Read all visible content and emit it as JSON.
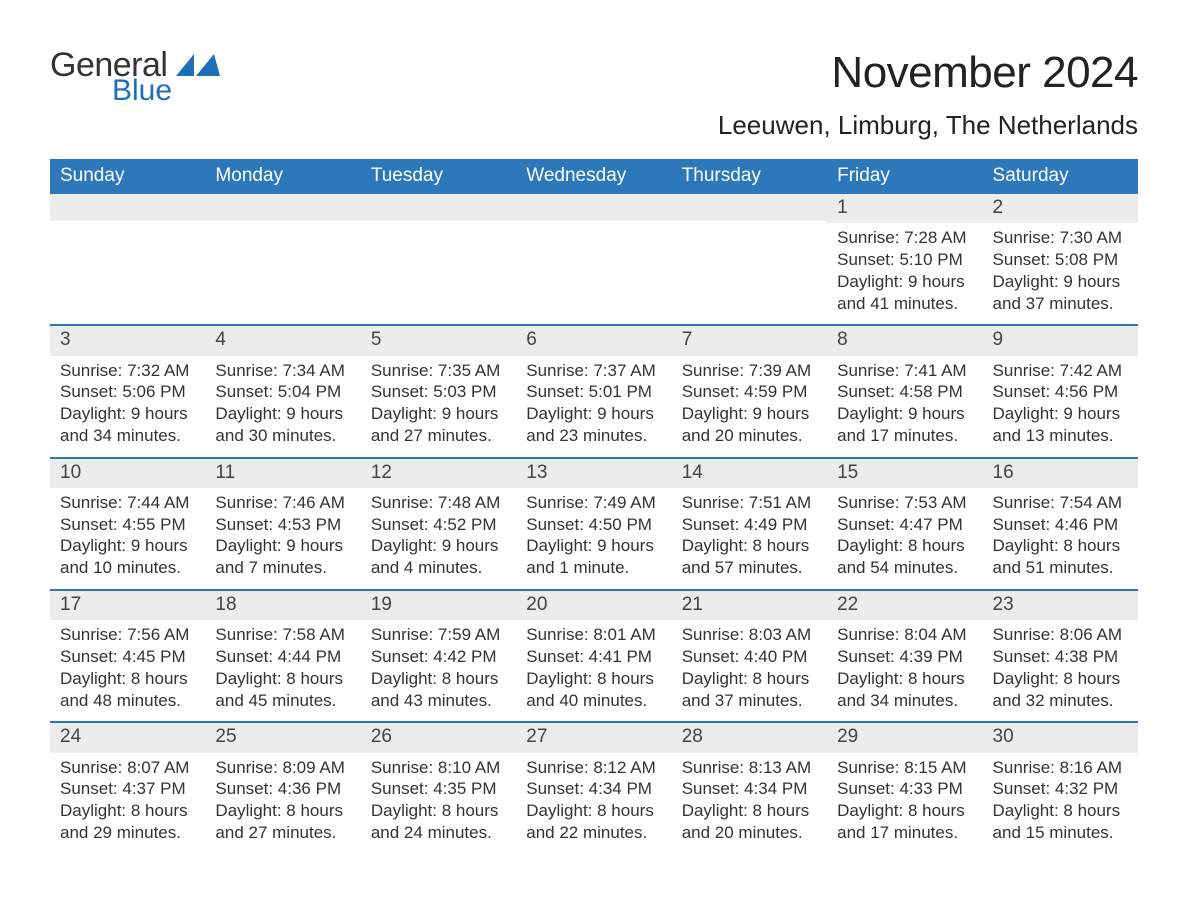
{
  "brand": {
    "name_general": "General",
    "name_blue": "Blue",
    "swoosh_color": "#1c6fb8",
    "text_color_dark": "#333333",
    "text_color_blue": "#1c6fb8"
  },
  "header": {
    "month_title": "November 2024",
    "location": "Leeuwen, Limburg, The Netherlands",
    "month_title_fontsize": 44,
    "location_fontsize": 26
  },
  "calendar": {
    "type": "table",
    "header_bg": "#2d77bb",
    "header_fg": "#ffffff",
    "week_divider_color": "#2d77bb",
    "daynum_bg": "#ececec",
    "cell_fontsize": 17,
    "columns": [
      "Sunday",
      "Monday",
      "Tuesday",
      "Wednesday",
      "Thursday",
      "Friday",
      "Saturday"
    ],
    "weeks": [
      [
        null,
        null,
        null,
        null,
        null,
        {
          "n": "1",
          "sunrise": "7:28 AM",
          "sunset": "5:10 PM",
          "daylight": "9 hours and 41 minutes."
        },
        {
          "n": "2",
          "sunrise": "7:30 AM",
          "sunset": "5:08 PM",
          "daylight": "9 hours and 37 minutes."
        }
      ],
      [
        {
          "n": "3",
          "sunrise": "7:32 AM",
          "sunset": "5:06 PM",
          "daylight": "9 hours and 34 minutes."
        },
        {
          "n": "4",
          "sunrise": "7:34 AM",
          "sunset": "5:04 PM",
          "daylight": "9 hours and 30 minutes."
        },
        {
          "n": "5",
          "sunrise": "7:35 AM",
          "sunset": "5:03 PM",
          "daylight": "9 hours and 27 minutes."
        },
        {
          "n": "6",
          "sunrise": "7:37 AM",
          "sunset": "5:01 PM",
          "daylight": "9 hours and 23 minutes."
        },
        {
          "n": "7",
          "sunrise": "7:39 AM",
          "sunset": "4:59 PM",
          "daylight": "9 hours and 20 minutes."
        },
        {
          "n": "8",
          "sunrise": "7:41 AM",
          "sunset": "4:58 PM",
          "daylight": "9 hours and 17 minutes."
        },
        {
          "n": "9",
          "sunrise": "7:42 AM",
          "sunset": "4:56 PM",
          "daylight": "9 hours and 13 minutes."
        }
      ],
      [
        {
          "n": "10",
          "sunrise": "7:44 AM",
          "sunset": "4:55 PM",
          "daylight": "9 hours and 10 minutes."
        },
        {
          "n": "11",
          "sunrise": "7:46 AM",
          "sunset": "4:53 PM",
          "daylight": "9 hours and 7 minutes."
        },
        {
          "n": "12",
          "sunrise": "7:48 AM",
          "sunset": "4:52 PM",
          "daylight": "9 hours and 4 minutes."
        },
        {
          "n": "13",
          "sunrise": "7:49 AM",
          "sunset": "4:50 PM",
          "daylight": "9 hours and 1 minute."
        },
        {
          "n": "14",
          "sunrise": "7:51 AM",
          "sunset": "4:49 PM",
          "daylight": "8 hours and 57 minutes."
        },
        {
          "n": "15",
          "sunrise": "7:53 AM",
          "sunset": "4:47 PM",
          "daylight": "8 hours and 54 minutes."
        },
        {
          "n": "16",
          "sunrise": "7:54 AM",
          "sunset": "4:46 PM",
          "daylight": "8 hours and 51 minutes."
        }
      ],
      [
        {
          "n": "17",
          "sunrise": "7:56 AM",
          "sunset": "4:45 PM",
          "daylight": "8 hours and 48 minutes."
        },
        {
          "n": "18",
          "sunrise": "7:58 AM",
          "sunset": "4:44 PM",
          "daylight": "8 hours and 45 minutes."
        },
        {
          "n": "19",
          "sunrise": "7:59 AM",
          "sunset": "4:42 PM",
          "daylight": "8 hours and 43 minutes."
        },
        {
          "n": "20",
          "sunrise": "8:01 AM",
          "sunset": "4:41 PM",
          "daylight": "8 hours and 40 minutes."
        },
        {
          "n": "21",
          "sunrise": "8:03 AM",
          "sunset": "4:40 PM",
          "daylight": "8 hours and 37 minutes."
        },
        {
          "n": "22",
          "sunrise": "8:04 AM",
          "sunset": "4:39 PM",
          "daylight": "8 hours and 34 minutes."
        },
        {
          "n": "23",
          "sunrise": "8:06 AM",
          "sunset": "4:38 PM",
          "daylight": "8 hours and 32 minutes."
        }
      ],
      [
        {
          "n": "24",
          "sunrise": "8:07 AM",
          "sunset": "4:37 PM",
          "daylight": "8 hours and 29 minutes."
        },
        {
          "n": "25",
          "sunrise": "8:09 AM",
          "sunset": "4:36 PM",
          "daylight": "8 hours and 27 minutes."
        },
        {
          "n": "26",
          "sunrise": "8:10 AM",
          "sunset": "4:35 PM",
          "daylight": "8 hours and 24 minutes."
        },
        {
          "n": "27",
          "sunrise": "8:12 AM",
          "sunset": "4:34 PM",
          "daylight": "8 hours and 22 minutes."
        },
        {
          "n": "28",
          "sunrise": "8:13 AM",
          "sunset": "4:34 PM",
          "daylight": "8 hours and 20 minutes."
        },
        {
          "n": "29",
          "sunrise": "8:15 AM",
          "sunset": "4:33 PM",
          "daylight": "8 hours and 17 minutes."
        },
        {
          "n": "30",
          "sunrise": "8:16 AM",
          "sunset": "4:32 PM",
          "daylight": "8 hours and 15 minutes."
        }
      ]
    ],
    "labels": {
      "sunrise_prefix": "Sunrise: ",
      "sunset_prefix": "Sunset: ",
      "daylight_prefix": "Daylight: "
    }
  }
}
